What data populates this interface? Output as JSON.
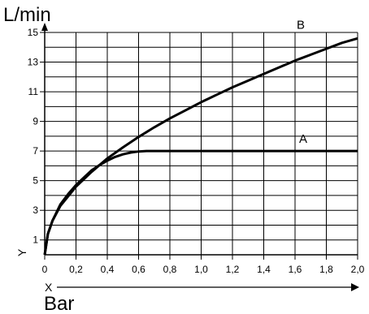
{
  "chart_data": {
    "type": "line",
    "y_unit_label": "L/min",
    "x_unit_label": "Bar",
    "x_axis_letter": "X",
    "y_axis_letter": "Y",
    "xlim": [
      0,
      2.0
    ],
    "ylim": [
      0,
      15
    ],
    "grid": true,
    "x_ticks": [
      0,
      0.2,
      0.4,
      0.6,
      0.8,
      1.0,
      1.2,
      1.4,
      1.6,
      1.8,
      2.0
    ],
    "x_tick_labels": [
      "0",
      "0,2",
      "0,4",
      "0,6",
      "0,8",
      "1,0",
      "1,2",
      "1,4",
      "1,6",
      "1,8",
      "2,0"
    ],
    "y_ticks": [
      1,
      3,
      5,
      7,
      9,
      11,
      13,
      15
    ],
    "y_tick_labels": [
      "1",
      "3",
      "5",
      "7",
      "9",
      "11",
      "13",
      "15"
    ],
    "series": [
      {
        "name": "A",
        "x": [
          0.0,
          0.02,
          0.05,
          0.1,
          0.15,
          0.2,
          0.25,
          0.3,
          0.35,
          0.4,
          0.45,
          0.5,
          0.55,
          0.6,
          0.65,
          0.7,
          0.8,
          1.0,
          1.2,
          1.4,
          1.6,
          1.8,
          2.0
        ],
        "y": [
          0.0,
          1.4,
          2.3,
          3.4,
          4.1,
          4.7,
          5.2,
          5.7,
          6.05,
          6.35,
          6.6,
          6.78,
          6.9,
          6.97,
          7.0,
          7.0,
          7.0,
          7.0,
          7.0,
          7.0,
          7.0,
          7.0,
          7.0
        ]
      },
      {
        "name": "B",
        "x": [
          0.0,
          0.02,
          0.05,
          0.1,
          0.2,
          0.3,
          0.4,
          0.5,
          0.6,
          0.7,
          0.8,
          0.9,
          1.0,
          1.1,
          1.2,
          1.3,
          1.4,
          1.5,
          1.6,
          1.7,
          1.8,
          1.9,
          2.0
        ],
        "y": [
          0.0,
          1.4,
          2.3,
          3.3,
          4.6,
          5.6,
          6.5,
          7.25,
          7.95,
          8.6,
          9.2,
          9.75,
          10.3,
          10.8,
          11.3,
          11.75,
          12.2,
          12.65,
          13.1,
          13.5,
          13.9,
          14.3,
          14.6
        ]
      }
    ]
  }
}
